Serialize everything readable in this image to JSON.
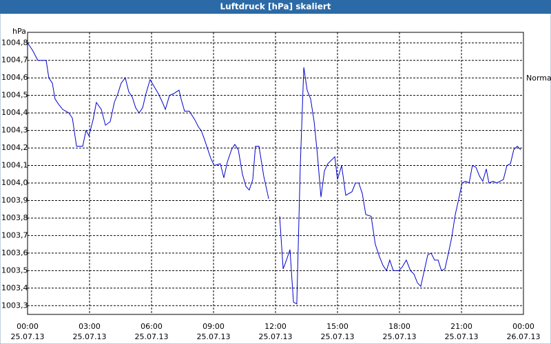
{
  "chart_data": {
    "type": "line",
    "title": "Luftdruck [hPa] skaliert",
    "y_unit": "hPa",
    "grid": true,
    "xlim": [
      0,
      24
    ],
    "ylim": [
      1003.25,
      1004.86
    ],
    "xticks": [
      {
        "value": 0,
        "label": "00:00",
        "date": "25.07.13"
      },
      {
        "value": 3,
        "label": "03:00",
        "date": "25.07.13"
      },
      {
        "value": 6,
        "label": "06:00",
        "date": "25.07.13"
      },
      {
        "value": 9,
        "label": "09:00",
        "date": "25.07.13"
      },
      {
        "value": 12,
        "label": "12:00",
        "date": "25.07.13"
      },
      {
        "value": 15,
        "label": "15:00",
        "date": "25.07.13"
      },
      {
        "value": 18,
        "label": "18:00",
        "date": "25.07.13"
      },
      {
        "value": 21,
        "label": "21:00",
        "date": "25.07.13"
      },
      {
        "value": 24,
        "label": "00:00",
        "date": "26.07.13"
      }
    ],
    "yticks": [
      {
        "value": 1003.3,
        "label": "1003,3"
      },
      {
        "value": 1003.4,
        "label": "1003,4"
      },
      {
        "value": 1003.5,
        "label": "1003,5"
      },
      {
        "value": 1003.6,
        "label": "1003,6"
      },
      {
        "value": 1003.7,
        "label": "1003,7"
      },
      {
        "value": 1003.8,
        "label": "1003,8"
      },
      {
        "value": 1003.9,
        "label": "1003,9"
      },
      {
        "value": 1004.0,
        "label": "1004,0"
      },
      {
        "value": 1004.1,
        "label": "1004,1"
      },
      {
        "value": 1004.2,
        "label": "1004,2"
      },
      {
        "value": 1004.3,
        "label": "1004,3"
      },
      {
        "value": 1004.4,
        "label": "1004,4"
      },
      {
        "value": 1004.5,
        "label": "1004,5"
      },
      {
        "value": 1004.6,
        "label": "1004,6"
      },
      {
        "value": 1004.7,
        "label": "1004,7"
      },
      {
        "value": 1004.8,
        "label": "1004,8"
      }
    ],
    "x": [
      0,
      0.23,
      0.5,
      0.67,
      0.9,
      1.03,
      1.2,
      1.33,
      1.5,
      1.7,
      2,
      2.17,
      2.37,
      2.67,
      2.83,
      2.97,
      3.17,
      3.33,
      3.57,
      3.77,
      4,
      4.2,
      4.37,
      4.53,
      4.73,
      4.9,
      5.07,
      5.23,
      5.4,
      5.57,
      5.73,
      5.93,
      6.13,
      6.33,
      6.53,
      6.67,
      6.87,
      7.07,
      7.33,
      7.43,
      7.6,
      7.83,
      8.1,
      8.27,
      8.4,
      8.53,
      8.7,
      8.87,
      9.03,
      9.33,
      9.5,
      9.67,
      9.87,
      10.03,
      10.2,
      10.4,
      10.57,
      10.73,
      10.9,
      11.03,
      11.2,
      11.43,
      11.67,
      11.9,
      12.2,
      12.37,
      12.53,
      12.7,
      12.87,
      13.03,
      13.2,
      13.37,
      13.53,
      13.7,
      13.87,
      14.03,
      14.2,
      14.37,
      14.53,
      14.87,
      15,
      15.2,
      15.4,
      15.7,
      15.87,
      16.03,
      16.2,
      16.37,
      16.63,
      16.83,
      17.03,
      17.2,
      17.37,
      17.53,
      17.7,
      17.97,
      18.13,
      18.33,
      18.53,
      18.7,
      18.87,
      19.03,
      19.2,
      19.37,
      19.53,
      19.7,
      19.87,
      20.03,
      20.2,
      20.37,
      20.53,
      20.7,
      20.87,
      21.03,
      21.2,
      21.37,
      21.53,
      21.7,
      21.87,
      22.03,
      22.2,
      22.33,
      22.53,
      22.7,
      22.87,
      23.03,
      23.2,
      23.37,
      23.53,
      23.7,
      23.87
    ],
    "series": [
      {
        "name": "Normal",
        "color": "#0000cc",
        "values": [
          1004.8,
          1004.76,
          1004.7,
          1004.7,
          1004.7,
          1004.6,
          1004.57,
          1004.48,
          1004.45,
          1004.42,
          1004.4,
          1004.37,
          1004.21,
          1004.21,
          1004.3,
          1004.27,
          1004.36,
          1004.46,
          1004.42,
          1004.33,
          1004.35,
          1004.46,
          1004.51,
          1004.57,
          1004.6,
          1004.52,
          1004.49,
          1004.43,
          1004.4,
          1004.43,
          1004.51,
          1004.59,
          1004.55,
          1004.51,
          1004.46,
          1004.42,
          1004.5,
          1004.51,
          1004.53,
          1004.48,
          1004.41,
          1004.41,
          1004.36,
          1004.32,
          1004.3,
          1004.26,
          1004.2,
          1004.14,
          1004.1,
          1004.11,
          1004.03,
          1004.12,
          1004.19,
          1004.22,
          1004.19,
          1004.05,
          1003.98,
          1003.96,
          1004.02,
          1004.21,
          1004.21,
          1004.04,
          1003.91,
          null,
          1003.81,
          1003.51,
          1003.56,
          1003.62,
          1003.32,
          1003.31,
          1004.1,
          1004.66,
          1004.53,
          1004.48,
          1004.35,
          1004.16,
          1003.92,
          1004.07,
          1004.11,
          1004.15,
          1004.02,
          1004.1,
          1003.93,
          1003.95,
          1004.0,
          1004.0,
          1003.94,
          1003.82,
          1003.81,
          1003.65,
          1003.58,
          1003.53,
          1003.5,
          1003.56,
          1003.5,
          1003.5,
          1003.52,
          1003.56,
          1003.5,
          1003.48,
          1003.43,
          1003.41,
          1003.5,
          1003.59,
          1003.6,
          1003.56,
          1003.56,
          1003.5,
          1003.51,
          1003.6,
          1003.69,
          1003.82,
          1003.91,
          1004.0,
          1004.01,
          1004.0,
          1004.1,
          1004.09,
          1004.04,
          1004.01,
          1004.08,
          1004.0,
          1004.01,
          1004.0,
          1004.01,
          1004.02,
          1004.1,
          1004.11,
          1004.19,
          1004.21,
          1004.19
        ]
      }
    ]
  }
}
